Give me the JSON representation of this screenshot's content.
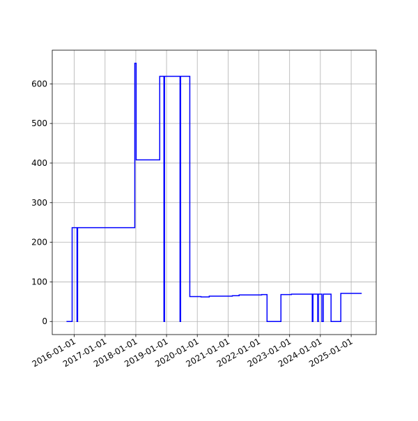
{
  "chart_data": {
    "type": "step",
    "color": "#0000ff",
    "grid": true,
    "x": [
      "2015-10-01",
      "2015-12-07",
      "2016-02-03",
      "2016-02-10",
      "2017-12-20",
      "2018-01-05",
      "2018-10-12",
      "2018-12-01",
      "2018-12-08",
      "2019-06-10",
      "2019-06-17",
      "2019-10-04",
      "2020-02-14",
      "2020-05-22",
      "2021-02-20",
      "2021-05-12",
      "2022-02-03",
      "2022-04-08",
      "2022-09-20",
      "2023-01-22",
      "2023-09-27",
      "2023-10-05",
      "2023-12-01",
      "2023-12-08",
      "2024-01-19",
      "2024-02-05",
      "2024-05-07",
      "2024-08-31",
      "2025-05-06"
    ],
    "values": [
      0,
      237,
      0,
      237,
      652,
      408,
      619,
      0,
      619,
      0,
      619,
      63,
      62,
      64,
      65,
      67,
      68,
      0,
      68,
      69,
      0,
      69,
      0,
      69,
      0,
      69,
      0,
      71,
      71
    ],
    "xlim": [
      "2015-04-15",
      "2025-10-25"
    ],
    "xticks": [
      "2016-01-01",
      "2017-01-01",
      "2018-01-01",
      "2019-01-01",
      "2020-01-01",
      "2021-01-01",
      "2022-01-01",
      "2023-01-01",
      "2024-01-01",
      "2025-01-01"
    ],
    "ylim": [
      -33,
      685
    ],
    "yticks": [
      0,
      100,
      200,
      300,
      400,
      500,
      600
    ]
  }
}
